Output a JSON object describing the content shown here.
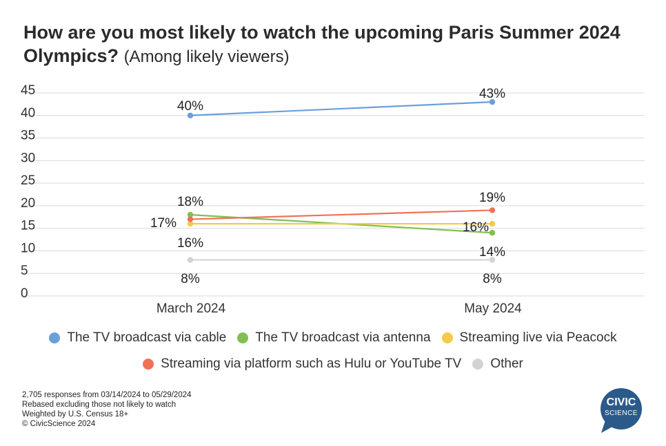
{
  "title": {
    "main": "How are you most likely to watch the upcoming Paris Summer 2024 Olympics?",
    "sub": "(Among likely viewers)"
  },
  "chart_data": {
    "type": "line",
    "categories": [
      "March 2024",
      "May 2024"
    ],
    "y_ticks": [
      "45",
      "40",
      "35",
      "30",
      "25",
      "20",
      "15",
      "10",
      "5",
      "0"
    ],
    "ylim": [
      0,
      45
    ],
    "grid": true,
    "legend_position": "bottom",
    "series": [
      {
        "name": "The TV broadcast via cable",
        "color": "#6a9fdc",
        "values": [
          40,
          43
        ],
        "labels": [
          "40%",
          "43%"
        ]
      },
      {
        "name": "The TV broadcast via antenna",
        "color": "#80c050",
        "values": [
          18,
          14
        ],
        "labels": [
          "18%",
          "14%"
        ]
      },
      {
        "name": "Streaming live via Peacock",
        "color": "#f7c948",
        "values": [
          16,
          16
        ],
        "labels": [
          "16%",
          "16%"
        ]
      },
      {
        "name": "Streaming via platform such as Hulu or YouTube TV",
        "color": "#f07158",
        "values": [
          17,
          19
        ],
        "labels": [
          "17%",
          "19%"
        ]
      },
      {
        "name": "Other",
        "color": "#d3d3d3",
        "values": [
          8,
          8
        ],
        "labels": [
          "8%",
          "8%"
        ]
      }
    ]
  },
  "footnotes": [
    "2,705 responses from 03/14/2024 to 05/29/2024",
    "Rebased excluding those not likely to watch",
    "Weighted by U.S. Census 18+",
    "© CivicScience 2024"
  ],
  "logo": {
    "line1": "CIVIC",
    "line2": "SCIENCE",
    "color": "#2b5a8a"
  }
}
